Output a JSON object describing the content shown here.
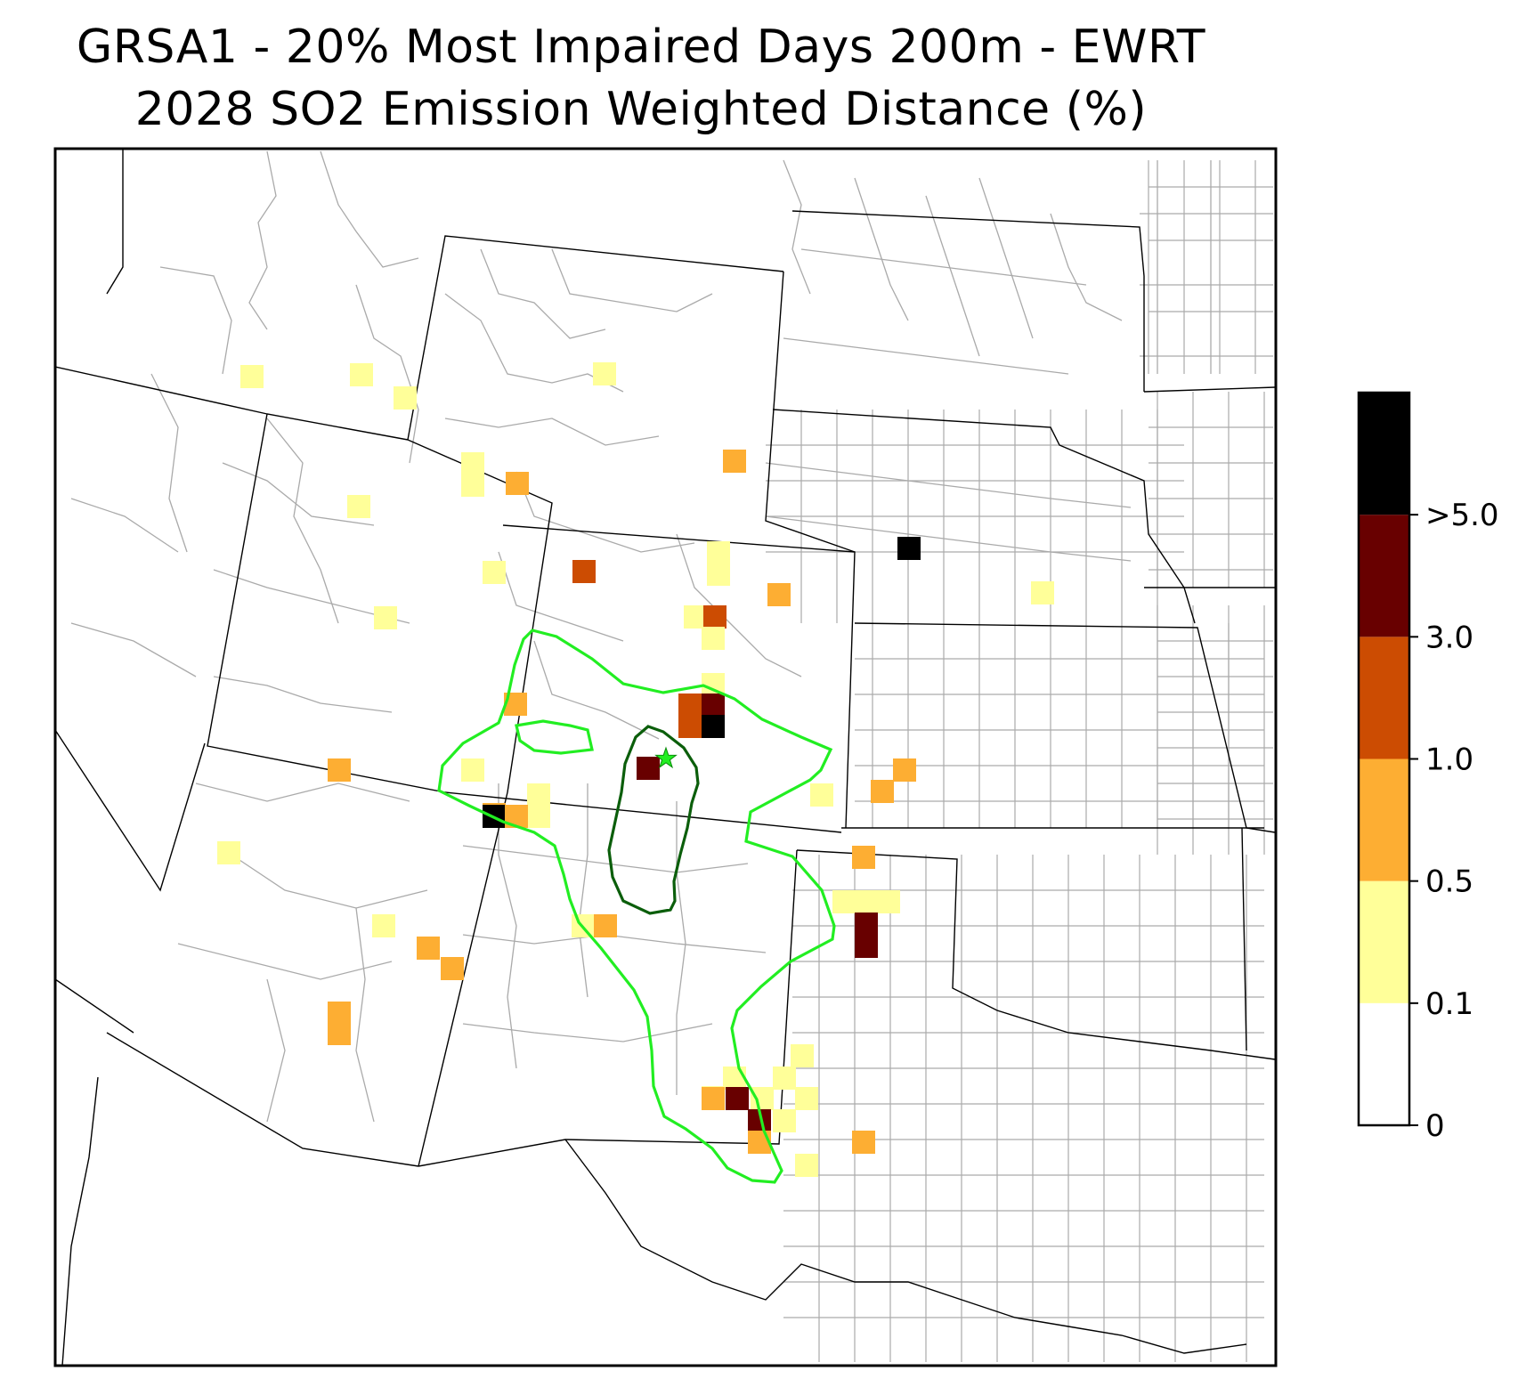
{
  "title": {
    "line1": "GRSA1 - 20% Most Impaired Days 200m - EWRT",
    "line2": "2028 SO2 Emission Weighted Distance (%)"
  },
  "colorbar": {
    "bins": [
      {
        "label": "0",
        "color": "#ffffff"
      },
      {
        "label": "0.1",
        "color": "#ffff99"
      },
      {
        "label": "0.5",
        "color": "#fdae33"
      },
      {
        "label": "1.0",
        "color": "#cc4c02"
      },
      {
        "label": "3.0",
        "color": "#680000"
      },
      {
        "label": ">5.0",
        "color": "#000000"
      }
    ]
  },
  "colors": {
    "outer_contour": "#22ee22",
    "inner_contour": "#0b5e0b",
    "receptor_star": "#22ee22",
    "county_lines": "#aaaaaa",
    "state_lines": "#000000"
  },
  "receptor_icon": "star-icon"
}
